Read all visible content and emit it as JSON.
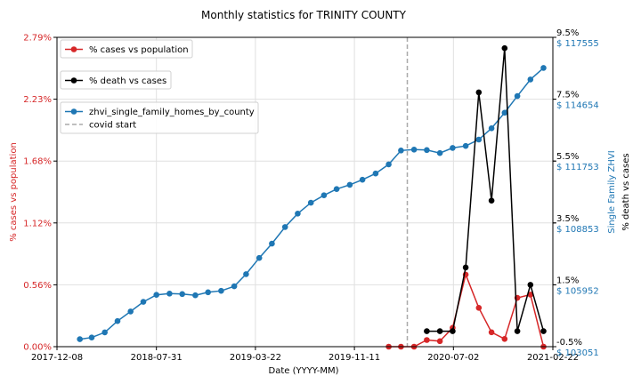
{
  "chart_data": {
    "type": "line",
    "title": "Monthly statistics for TRINITY COUNTY",
    "xlabel": "Date (YYYY-MM)",
    "ylabel_left": "% cases vs population",
    "ylabel_right_inner": "Single Family ZHVI",
    "ylabel_right_outer": "% death vs cases",
    "x_ticks": [
      "2017-12-08",
      "2018-07-31",
      "2019-03-22",
      "2019-11-11",
      "2020-07-02",
      "2021-02-22"
    ],
    "left_ticks": [
      "0.00%",
      "0.56%",
      "1.12%",
      "1.68%",
      "2.23%",
      "2.79%"
    ],
    "left_ylim": [
      0,
      2.79
    ],
    "zhvi_ticks": [
      "$ 103051",
      "$ 105952",
      "$ 108853",
      "$ 111753",
      "$ 114654",
      "$ 117555"
    ],
    "zhvi_ylim": [
      103051,
      117555
    ],
    "death_ticks": [
      "-0.5%",
      "1.5%",
      "3.5%",
      "5.5%",
      "7.5%",
      "9.5%"
    ],
    "death_ylim": [
      -0.5,
      9.5
    ],
    "x_range": [
      "2017-12-08",
      "2021-02-22"
    ],
    "covid_start": "2020-03-15",
    "grid": true,
    "colors": {
      "cases": "#d62728",
      "death": "#000000",
      "zhvi": "#1f77b4",
      "covid": "#aaaaaa",
      "left_axis": "#d62728",
      "zhvi_axis": "#1f77b4",
      "death_axis": "#000000"
    },
    "legend": [
      {
        "label": "% cases vs population",
        "series": "cases"
      },
      {
        "label": "% death vs cases",
        "series": "death"
      },
      {
        "label": "zhvi_single_family_homes_by_county",
        "series": "zhvi"
      },
      {
        "label": "covid start",
        "series": "covid"
      }
    ],
    "series": [
      {
        "key": "zhvi",
        "name": "zhvi_single_family_homes_by_county",
        "axis": "zhvi",
        "x": [
          "2018-01-31",
          "2018-02-28",
          "2018-03-31",
          "2018-04-30",
          "2018-05-31",
          "2018-06-30",
          "2018-07-31",
          "2018-08-31",
          "2018-09-30",
          "2018-10-31",
          "2018-11-30",
          "2018-12-31",
          "2019-01-31",
          "2019-02-28",
          "2019-03-31",
          "2019-04-30",
          "2019-05-31",
          "2019-06-30",
          "2019-07-31",
          "2019-08-31",
          "2019-09-30",
          "2019-10-31",
          "2019-11-30",
          "2019-12-31",
          "2020-01-31",
          "2020-02-29",
          "2020-03-31",
          "2020-04-30",
          "2020-05-31",
          "2020-06-30",
          "2020-07-31",
          "2020-08-31",
          "2020-09-30",
          "2020-10-31",
          "2020-11-30",
          "2020-12-31",
          "2021-01-31"
        ],
        "values": [
          103400,
          103480,
          103720,
          104250,
          104700,
          105150,
          105480,
          105540,
          105520,
          105460,
          105600,
          105670,
          105880,
          106450,
          107210,
          107880,
          108660,
          109290,
          109800,
          110150,
          110440,
          110640,
          110880,
          111170,
          111600,
          112250,
          112290,
          112270,
          112130,
          112370,
          112460,
          112760,
          113290,
          114020,
          114800,
          115580,
          116120
        ]
      },
      {
        "key": "cases",
        "name": "% cases vs population",
        "axis": "left",
        "x": [
          "2020-01-31",
          "2020-02-29",
          "2020-03-31",
          "2020-04-30",
          "2020-05-31",
          "2020-06-30",
          "2020-07-31",
          "2020-08-31",
          "2020-09-30",
          "2020-10-31",
          "2020-11-30",
          "2020-12-31",
          "2021-01-31"
        ],
        "values": [
          0.0,
          0.0,
          0.0,
          0.06,
          0.05,
          0.17,
          0.65,
          0.35,
          0.13,
          0.07,
          0.44,
          0.47,
          0.0
        ]
      },
      {
        "key": "death",
        "name": "% death vs cases",
        "axis": "death",
        "x": [
          "2020-04-30",
          "2020-05-31",
          "2020-06-30",
          "2020-07-31",
          "2020-08-31",
          "2020-09-30",
          "2020-10-31",
          "2020-11-30",
          "2020-12-31",
          "2021-01-31"
        ],
        "values": [
          0.0,
          0.0,
          0.0,
          2.06,
          7.72,
          4.22,
          9.15,
          0.0,
          1.5,
          0.0
        ]
      }
    ]
  }
}
